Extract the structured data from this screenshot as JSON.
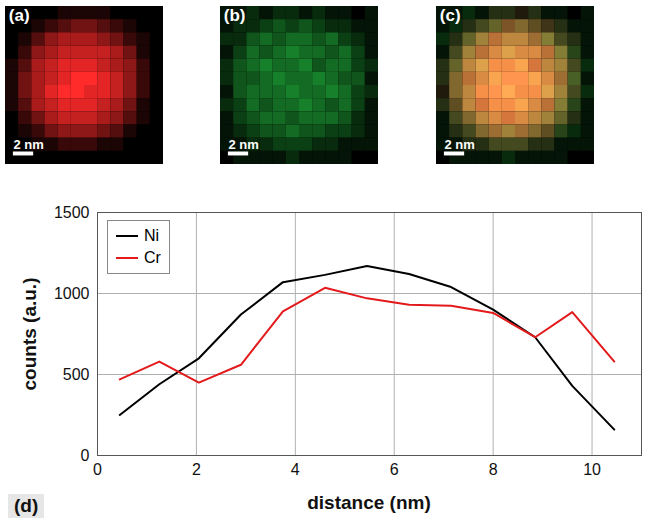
{
  "chart_data": [
    {
      "type": "heatmap",
      "panel_label": "(a)",
      "color": "#ff2a2a",
      "zlim": [
        0,
        9
      ],
      "pixel_size": 1.3,
      "scale_bar": {
        "length": 2,
        "label": "2 nm"
      },
      "cells": [
        [
          0,
          0,
          0,
          0,
          1,
          1,
          1,
          1,
          0,
          0,
          0,
          0
        ],
        [
          0,
          0,
          1,
          2,
          3,
          4,
          4,
          3,
          2,
          1,
          0,
          0
        ],
        [
          0,
          1,
          3,
          5,
          6,
          6,
          6,
          5,
          4,
          2,
          1,
          0
        ],
        [
          0,
          2,
          5,
          6,
          7,
          7,
          7,
          7,
          6,
          4,
          1,
          0
        ],
        [
          1,
          3,
          6,
          7,
          8,
          8,
          8,
          7,
          6,
          5,
          2,
          0
        ],
        [
          1,
          4,
          6,
          7,
          8,
          9,
          9,
          8,
          7,
          5,
          2,
          0
        ],
        [
          1,
          4,
          6,
          8,
          9,
          9,
          8,
          8,
          7,
          5,
          2,
          0
        ],
        [
          1,
          3,
          6,
          7,
          8,
          8,
          8,
          7,
          6,
          4,
          1,
          0
        ],
        [
          0,
          2,
          4,
          6,
          7,
          7,
          7,
          6,
          5,
          3,
          1,
          0
        ],
        [
          0,
          1,
          2,
          4,
          5,
          5,
          5,
          4,
          3,
          1,
          0,
          0
        ],
        [
          0,
          0,
          1,
          1,
          2,
          2,
          2,
          1,
          1,
          0,
          0,
          0
        ],
        [
          0,
          0,
          0,
          0,
          0,
          0,
          0,
          0,
          0,
          0,
          0,
          0
        ]
      ]
    },
    {
      "type": "heatmap",
      "panel_label": "(b)",
      "color": "#22c040",
      "zlim": [
        0,
        9
      ],
      "pixel_size": 1.3,
      "scale_bar": {
        "length": 2,
        "label": "2 nm"
      },
      "cells": [
        [
          1,
          1,
          2,
          1,
          2,
          2,
          1,
          2,
          1,
          1,
          0,
          1
        ],
        [
          1,
          2,
          2,
          3,
          4,
          3,
          4,
          3,
          2,
          2,
          1,
          1
        ],
        [
          2,
          2,
          4,
          5,
          4,
          5,
          5,
          4,
          5,
          3,
          2,
          1
        ],
        [
          1,
          3,
          5,
          4,
          5,
          6,
          5,
          5,
          4,
          5,
          3,
          1
        ],
        [
          2,
          4,
          5,
          6,
          5,
          5,
          6,
          4,
          5,
          5,
          3,
          2
        ],
        [
          2,
          4,
          4,
          5,
          6,
          5,
          5,
          6,
          5,
          4,
          4,
          1
        ],
        [
          1,
          4,
          5,
          5,
          5,
          6,
          5,
          5,
          6,
          5,
          3,
          2
        ],
        [
          2,
          3,
          5,
          4,
          5,
          5,
          6,
          5,
          4,
          5,
          3,
          1
        ],
        [
          1,
          3,
          4,
          5,
          5,
          4,
          5,
          5,
          5,
          4,
          2,
          1
        ],
        [
          1,
          2,
          3,
          4,
          4,
          5,
          4,
          4,
          3,
          3,
          2,
          1
        ],
        [
          1,
          1,
          2,
          2,
          3,
          3,
          3,
          2,
          2,
          1,
          1,
          1
        ],
        [
          0,
          1,
          1,
          1,
          1,
          2,
          1,
          1,
          1,
          1,
          0,
          0
        ]
      ]
    },
    {
      "type": "overlay",
      "panel_label": "(c)",
      "layers": [
        "(a)",
        "(b)"
      ],
      "scale_bar": {
        "length": 2,
        "label": "2 nm"
      }
    },
    {
      "type": "line",
      "panel_label": "(d)",
      "xlabel": "distance (nm)",
      "ylabel": "counts (a.u.)",
      "xlim": [
        0,
        11
      ],
      "ylim": [
        0,
        1500
      ],
      "xticks": [
        0,
        2,
        4,
        6,
        8,
        10
      ],
      "yticks": [
        0,
        500,
        1000,
        1500
      ],
      "grid": true,
      "legend": "upper left",
      "x": [
        0.45,
        1.25,
        2.05,
        2.9,
        3.75,
        4.6,
        5.45,
        6.3,
        7.15,
        8.0,
        8.85,
        9.6,
        10.45
      ],
      "series": [
        {
          "name": "Ni",
          "color": "#000000",
          "values": [
            250,
            440,
            600,
            870,
            1070,
            1115,
            1170,
            1120,
            1040,
            900,
            730,
            430,
            160
          ]
        },
        {
          "name": "Cr",
          "color": "#e31a1c",
          "values": [
            470,
            580,
            450,
            560,
            890,
            1035,
            970,
            930,
            925,
            880,
            730,
            885,
            580
          ]
        }
      ]
    }
  ]
}
